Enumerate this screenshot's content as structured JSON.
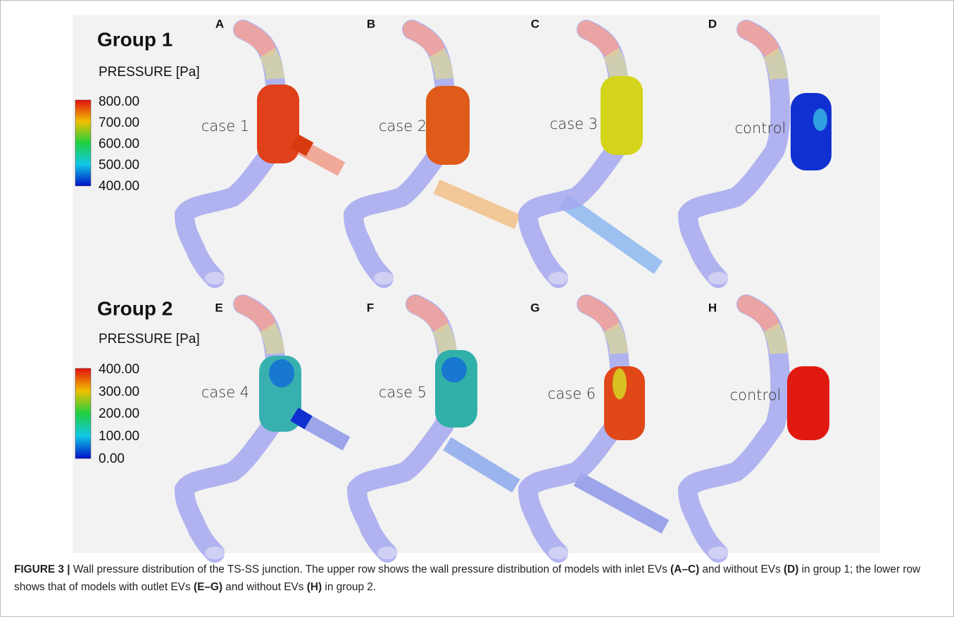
{
  "figure": {
    "groups": [
      {
        "title": "Group 1",
        "unit": "PRESSURE [Pa]",
        "scale": [
          "800.00",
          "700.00",
          "600.00",
          "500.00",
          "400.00"
        ]
      },
      {
        "title": "Group 2",
        "unit": "PRESSURE [Pa]",
        "scale": [
          "400.00",
          "300.00",
          "200.00",
          "100.00",
          "0.00"
        ]
      }
    ],
    "panels": [
      {
        "letter": "A",
        "label": "case 1"
      },
      {
        "letter": "B",
        "label": "case 2"
      },
      {
        "letter": "C",
        "label": "case 3"
      },
      {
        "letter": "D",
        "label": "control"
      },
      {
        "letter": "E",
        "label": "case 4"
      },
      {
        "letter": "F",
        "label": "case 5"
      },
      {
        "letter": "G",
        "label": "case 6"
      },
      {
        "letter": "H",
        "label": "control"
      }
    ]
  },
  "caption": {
    "segments": [
      {
        "text": "FIGURE 3 |",
        "bold": true
      },
      {
        "text": " Wall pressure distribution of the TS-SS junction. The upper row shows the wall pressure distribution of models with inlet EVs ",
        "bold": false
      },
      {
        "text": "(A–C)",
        "bold": true
      },
      {
        "text": " and without EVs ",
        "bold": false
      },
      {
        "text": "(D)",
        "bold": true
      },
      {
        "text": " in group 1; the lower row shows that of models with outlet EVs ",
        "bold": false
      },
      {
        "text": "(E–G)",
        "bold": true
      },
      {
        "text": " and without EVs ",
        "bold": false
      },
      {
        "text": "(H)",
        "bold": true
      },
      {
        "text": " in group 2.",
        "bold": false
      }
    ]
  }
}
